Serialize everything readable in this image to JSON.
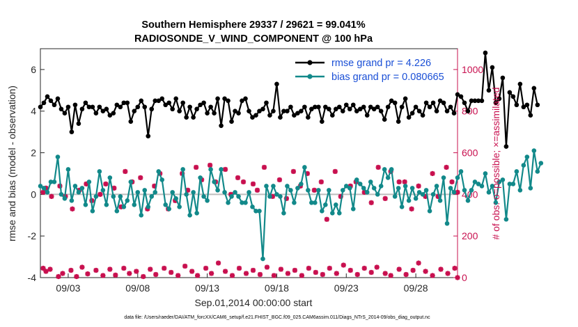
{
  "chart_data": {
    "type": "line",
    "title_line1": "Southern Hemisphere 29337 / 29621 = 99.041%",
    "title_line2": "RADIOSONDE_V_WIND_COMPONENT @ 100 hPa",
    "xlabel": "Sep.01,2014 00:00:00 start",
    "ylabel_left": "rmse and bias (model - observation)",
    "ylabel_right": "# of obs: o=possible; ×=assimilated",
    "footnote": "data file: /Users/raeder/DAI/ATM_forcXX/CAM6_setup/f.e21.FHIST_BGC.f09_025.CAM6assim.011/Diags_NTrS_2014-09/obs_diag_output.nc",
    "x_tick_labels": [
      "09/03",
      "09/08",
      "09/13",
      "09/18",
      "09/23",
      "09/28"
    ],
    "x_tick_days": [
      3,
      8,
      13,
      18,
      23,
      28
    ],
    "xlim_days": [
      1.0,
      31.0
    ],
    "ylim_left": [
      -4,
      7
    ],
    "yticks_left": [
      "-4",
      "-2",
      "0",
      "2",
      "4",
      "6"
    ],
    "ylim_right": [
      0,
      1100
    ],
    "yticks_right": [
      "0",
      "200",
      "400",
      "600",
      "800",
      "1000"
    ],
    "time_step_days": 0.25,
    "legend": [
      {
        "name": "rmse grand pr = 4.226",
        "color": "#000000"
      },
      {
        "name": "bias grand pr = 0.080665",
        "color": "#12898a"
      }
    ],
    "series": [
      {
        "name": "rmse",
        "color": "#000000",
        "values": [
          4.2,
          4.4,
          4.7,
          4.5,
          4.3,
          4.6,
          4.1,
          3.9,
          4.2,
          3.0,
          4.3,
          3.4,
          4.1,
          4.4,
          4.2,
          4.2,
          3.9,
          4.2,
          4.0,
          4.1,
          3.8,
          3.9,
          4.3,
          4.2,
          4.4,
          4.4,
          3.5,
          4.0,
          4.2,
          4.5,
          4.2,
          2.8,
          4.1,
          4.5,
          4.5,
          4.6,
          4.3,
          4.4,
          4.1,
          4.6,
          4.0,
          4.4,
          3.7,
          4.2,
          3.7,
          4.1,
          4.3,
          4.4,
          3.9,
          4.2,
          3.9,
          4.6,
          3.3,
          4.6,
          4.5,
          3.5,
          4.0,
          3.9,
          4.5,
          4.6,
          4.0,
          3.7,
          3.8,
          4.0,
          4.1,
          4.4,
          3.8,
          4.0,
          5.3,
          3.7,
          4.0,
          4.0,
          4.2,
          3.8,
          3.9,
          4.0,
          4.2,
          3.7,
          4.1,
          4.2,
          4.2,
          3.5,
          4.2,
          4.1,
          3.8,
          4.1,
          4.2,
          4.0,
          4.3,
          4.1,
          4.3,
          4.0,
          4.1,
          4.2,
          3.8,
          4.2,
          4.1,
          4.2,
          4.0,
          3.6,
          4.2,
          4.5,
          4.4,
          3.5,
          4.2,
          4.6,
          3.7,
          3.9,
          4.2,
          4.0,
          3.8,
          4.4,
          4.2,
          4.4,
          4.0,
          4.5,
          4.4,
          4.0,
          4.2,
          3.9,
          4.8,
          4.7,
          4.4,
          4.0,
          4.5,
          4.5,
          4.5,
          4.5,
          6.8,
          5.0,
          6.1,
          4.4,
          4.6,
          5.6,
          2.3,
          4.9,
          4.7,
          4.3,
          5.3,
          4.2,
          4.3,
          3.8,
          5.1,
          4.3
        ]
      },
      {
        "name": "bias",
        "color": "#12898a",
        "values": [
          0.4,
          0.3,
          0.1,
          0.6,
          0.6,
          1.8,
          0.0,
          -0.2,
          1.2,
          -0.3,
          0.4,
          0.1,
          0.3,
          -0.5,
          0.6,
          -0.8,
          -0.1,
          1.1,
          0.2,
          -0.5,
          0.8,
          -0.1,
          -0.8,
          -0.1,
          -0.6,
          -0.3,
          0.6,
          -0.5,
          0.1,
          -1.0,
          0.2,
          -0.6,
          -0.1,
          0.1,
          1.1,
          0.7,
          -0.5,
          -0.7,
          0.1,
          -0.2,
          -0.6,
          1.2,
          0.0,
          -1.0,
          0.1,
          -0.9,
          0.8,
          -0.1,
          -0.3,
          1.2,
          0.6,
          0.2,
          1.2,
          0.1,
          -0.4,
          -0.1,
          0.1,
          -0.1,
          -0.4,
          -0.4,
          0.1,
          -0.6,
          -0.8,
          -0.8,
          -3.1,
          0.4,
          -0.1,
          0.4,
          0.0,
          -0.1,
          -0.9,
          0.4,
          0.2,
          -0.4,
          0.3,
          0.5,
          1.3,
          0.2,
          -0.4,
          -0.4,
          0.2,
          -0.8,
          -0.5,
          0.2,
          -0.9,
          -0.5,
          -0.9,
          0.2,
          0.4,
          0.3,
          -0.7,
          0.7,
          0.5,
          0.3,
          0.1,
          0.6,
          0.3,
          0.0,
          0.4,
          1.2,
          0.8,
          1.2,
          -0.1,
          0.3,
          -0.6,
          0.4,
          -0.3,
          0.3,
          -0.2,
          0.1,
          0.0,
          0.2,
          -0.8,
          0.0,
          0.4,
          -0.3,
          0.8,
          -1.4,
          0.3,
          0.1,
          0.8,
          1.1,
          0.2,
          -0.3,
          0.2,
          0.6,
          0.5,
          0.4,
          1.0,
          0.1,
          0.4,
          -0.4,
          0.6,
          0.7,
          -1.2,
          0.5,
          0.5,
          1.1,
          0.2,
          1.4,
          1.8,
          0.3,
          2.1,
          1.1,
          1.5
        ]
      },
      {
        "name": "obs possible",
        "color": "#c8104f",
        "values_by_day_am": [
          [
            1.2,
            45
          ],
          [
            1.4,
            30
          ],
          [
            1.7,
            40
          ],
          [
            2.3,
            5
          ],
          [
            2.6,
            20
          ],
          [
            3.2,
            35
          ],
          [
            3.6,
            5
          ],
          [
            4.0,
            50
          ],
          [
            4.4,
            18
          ],
          [
            5.0,
            35
          ],
          [
            5.5,
            10
          ],
          [
            6.0,
            40
          ],
          [
            6.4,
            12
          ],
          [
            7.0,
            45
          ],
          [
            7.4,
            20
          ],
          [
            7.9,
            30
          ],
          [
            8.4,
            5
          ],
          [
            8.9,
            40
          ],
          [
            9.3,
            15
          ],
          [
            9.9,
            45
          ],
          [
            10.4,
            25
          ],
          [
            10.9,
            10
          ],
          [
            11.4,
            55
          ],
          [
            11.9,
            30
          ],
          [
            12.3,
            10
          ],
          [
            12.9,
            45
          ],
          [
            13.3,
            20
          ],
          [
            13.8,
            70
          ],
          [
            14.3,
            30
          ],
          [
            14.8,
            10
          ],
          [
            15.3,
            45
          ],
          [
            15.8,
            20
          ],
          [
            16.3,
            35
          ],
          [
            16.8,
            15
          ],
          [
            17.3,
            50
          ],
          [
            17.8,
            10
          ],
          [
            18.3,
            40
          ],
          [
            18.8,
            20
          ],
          [
            19.3,
            35
          ],
          [
            19.8,
            10
          ],
          [
            20.3,
            45
          ],
          [
            20.8,
            25
          ],
          [
            21.3,
            15
          ],
          [
            21.8,
            45
          ],
          [
            22.3,
            20
          ],
          [
            22.8,
            60
          ],
          [
            23.3,
            35
          ],
          [
            23.8,
            15
          ],
          [
            24.3,
            45
          ],
          [
            24.8,
            25
          ],
          [
            25.2,
            50
          ],
          [
            25.8,
            20
          ],
          [
            26.2,
            10
          ],
          [
            26.8,
            40
          ],
          [
            27.3,
            15
          ],
          [
            27.8,
            35
          ],
          [
            28.2,
            70
          ],
          [
            28.7,
            30
          ],
          [
            29.2,
            10
          ],
          [
            29.8,
            40
          ],
          [
            30.3,
            20
          ],
          [
            30.8,
            45
          ],
          [
            31.0,
            0
          ]
        ],
        "values_by_day_pm": [
          [
            1.2,
            410
          ],
          [
            1.4,
            430
          ],
          [
            1.8,
            390
          ],
          [
            2.4,
            440
          ],
          [
            2.8,
            390
          ],
          [
            3.3,
            330
          ],
          [
            3.8,
            420
          ],
          [
            4.3,
            450
          ],
          [
            4.7,
            370
          ],
          [
            5.3,
            400
          ],
          [
            5.7,
            450
          ],
          [
            6.3,
            430
          ],
          [
            6.8,
            340
          ],
          [
            7.1,
            510
          ],
          [
            7.6,
            460
          ],
          [
            8.2,
            480
          ],
          [
            8.7,
            330
          ],
          [
            9.2,
            440
          ],
          [
            9.6,
            500
          ],
          [
            10.2,
            330
          ],
          [
            10.7,
            370
          ],
          [
            11.2,
            500
          ],
          [
            11.6,
            420
          ],
          [
            12.2,
            530
          ],
          [
            12.6,
            470
          ],
          [
            13.2,
            540
          ],
          [
            13.6,
            460
          ],
          [
            14.3,
            520
          ],
          [
            14.7,
            400
          ],
          [
            15.2,
            480
          ],
          [
            15.6,
            460
          ],
          [
            16.3,
            450
          ],
          [
            16.6,
            420
          ],
          [
            17.1,
            530
          ],
          [
            17.7,
            390
          ],
          [
            18.2,
            470
          ],
          [
            18.7,
            380
          ],
          [
            19.2,
            510
          ],
          [
            19.7,
            440
          ],
          [
            20.2,
            500
          ],
          [
            20.7,
            420
          ],
          [
            21.2,
            460
          ],
          [
            21.6,
            280
          ],
          [
            22.2,
            510
          ],
          [
            22.6,
            390
          ],
          [
            23.3,
            440
          ],
          [
            23.7,
            460
          ],
          [
            24.3,
            410
          ],
          [
            24.8,
            360
          ],
          [
            25.3,
            530
          ],
          [
            25.8,
            380
          ],
          [
            26.2,
            510
          ],
          [
            26.8,
            460
          ],
          [
            27.2,
            460
          ],
          [
            27.7,
            330
          ],
          [
            28.2,
            440
          ],
          [
            28.7,
            390
          ],
          [
            29.2,
            500
          ],
          [
            29.6,
            390
          ],
          [
            30.2,
            530
          ],
          [
            30.6,
            460
          ],
          [
            31.0,
            410
          ]
        ]
      }
    ]
  }
}
